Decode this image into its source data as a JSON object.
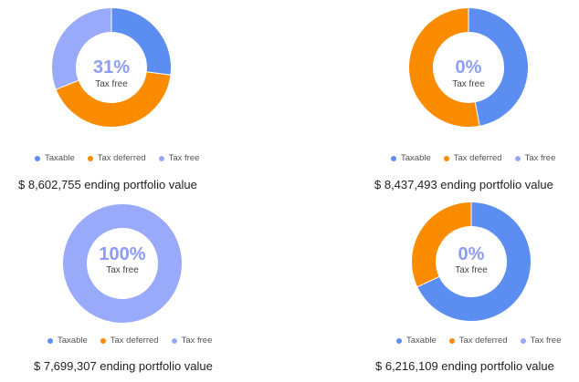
{
  "colors": {
    "taxable": "#5b8ef0",
    "tax_deferred": "#fb8c00",
    "tax_free": "#9aaafb",
    "center_text": "#8d9cf4"
  },
  "legend": {
    "taxable": "Taxable",
    "tax_deferred": "Tax deferred",
    "tax_free": "Tax free"
  },
  "chart_data": [
    {
      "type": "pie",
      "donut": true,
      "categories": [
        "Taxable",
        "Tax deferred",
        "Tax free"
      ],
      "values": [
        27,
        42,
        31
      ],
      "center_value": "31%",
      "center_label": "Tax free",
      "caption": "$ 8,602,755 ending portfolio value"
    },
    {
      "type": "pie",
      "donut": true,
      "categories": [
        "Taxable",
        "Tax deferred",
        "Tax free"
      ],
      "values": [
        47,
        53,
        0
      ],
      "center_value": "0%",
      "center_label": "Tax free",
      "caption": "$ 8,437,493 ending portfolio value"
    },
    {
      "type": "pie",
      "donut": true,
      "categories": [
        "Taxable",
        "Tax deferred",
        "Tax free"
      ],
      "values": [
        0,
        0,
        100
      ],
      "center_value": "100%",
      "center_label": "Tax free",
      "caption": "$ 7,699,307 ending portfolio value"
    },
    {
      "type": "pie",
      "donut": true,
      "categories": [
        "Taxable",
        "Tax deferred",
        "Tax free"
      ],
      "values": [
        68,
        32,
        0
      ],
      "center_value": "0%",
      "center_label": "Tax free",
      "caption": "$ 6,216,109 ending portfolio value"
    }
  ]
}
